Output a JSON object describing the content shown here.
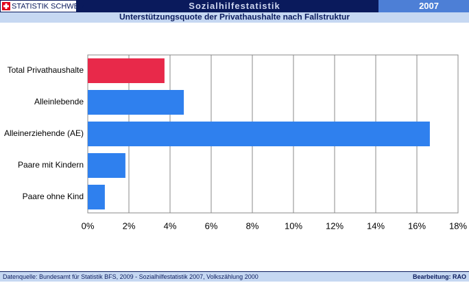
{
  "header": {
    "logo": "STATISTIK SCHWEIZ",
    "title": "Sozialhilfestatistik",
    "year": "2007"
  },
  "chart_data": {
    "type": "hbar",
    "title": "Unterstützungsquote der Privathaushalte nach Fallstruktur",
    "categories": [
      "Total Privathaushalte",
      "Alleinlebende",
      "Alleinerziehende (AE)",
      "Paare mit Kindern",
      "Paare ohne Kind"
    ],
    "values": [
      3.73,
      4.67,
      16.63,
      1.83,
      0.83
    ],
    "colors": [
      "#e8294a",
      "#2f80ee",
      "#2f80ee",
      "#2f80ee",
      "#2f80ee"
    ],
    "xlim": [
      0,
      18
    ],
    "xticks": [
      {
        "value": 0,
        "label": "0%"
      },
      {
        "value": 2,
        "label": "2%"
      },
      {
        "value": 4,
        "label": "4%"
      },
      {
        "value": 6,
        "label": "6%"
      },
      {
        "value": 8,
        "label": "8%"
      },
      {
        "value": 10,
        "label": "10%"
      },
      {
        "value": 12,
        "label": "12%"
      },
      {
        "value": 14,
        "label": "14%"
      },
      {
        "value": 16,
        "label": "16%"
      },
      {
        "value": 18,
        "label": "18%"
      }
    ],
    "grid": true
  },
  "footer": {
    "source": "Datenquelle: Bundesamt für Statistik BFS, 2009 - Sozialhilfestatistik 2007, Volkszählung 2000",
    "credit": "Bearbeitung: RAO"
  }
}
